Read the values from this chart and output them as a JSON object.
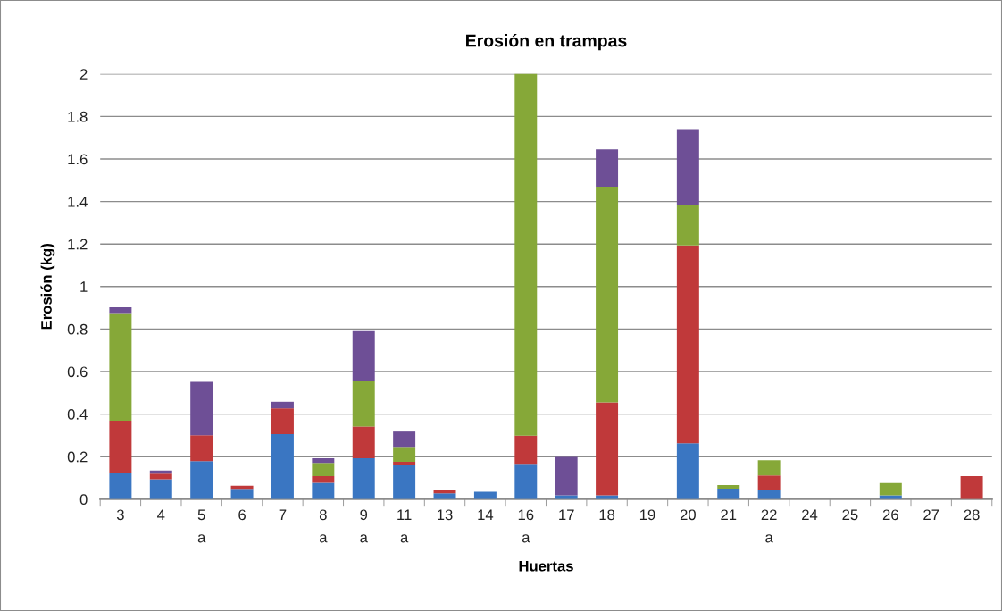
{
  "chart_data": {
    "type": "bar",
    "title": "Erosión en trampas",
    "xlabel": "Huertas",
    "ylabel": "Erosión (kg)",
    "stacked": true,
    "categories": [
      "3",
      "4",
      "5\na",
      "6",
      "7",
      "8\na",
      "9\na",
      "11\na",
      "13",
      "14",
      "16\na",
      "17",
      "18",
      "19",
      "20",
      "21",
      "22\na",
      "24",
      "25",
      "26",
      "27",
      "28"
    ],
    "series": [
      {
        "color": "#3a76c2",
        "values": [
          0.125,
          0.094,
          0.179,
          0.049,
          0.306,
          0.077,
          0.193,
          0.162,
          0.028,
          0.035,
          0.166,
          0.018,
          0.018,
          0,
          0.263,
          0.05,
          0.041,
          0,
          0,
          0.018,
          0,
          0
        ]
      },
      {
        "color": "#c0393a",
        "values": [
          0.244,
          0.026,
          0.122,
          0.014,
          0.121,
          0.031,
          0.149,
          0.014,
          0.013,
          0,
          0.133,
          0,
          0.437,
          0,
          0.93,
          0,
          0.071,
          0,
          0,
          0,
          0,
          0.109
        ]
      },
      {
        "color": "#86a838",
        "values": [
          0.506,
          0,
          0,
          0,
          0,
          0.062,
          0.214,
          0.07,
          0,
          0,
          1.705,
          0,
          1.015,
          0,
          0.19,
          0.017,
          0.071,
          0,
          0,
          0.058,
          0,
          0
        ]
      },
      {
        "color": "#6e4f96",
        "values": [
          0.028,
          0.015,
          0.251,
          0,
          0.031,
          0.023,
          0.238,
          0.072,
          0,
          0,
          0,
          0.181,
          0.175,
          0,
          0.358,
          0,
          0,
          0,
          0,
          0,
          0,
          0
        ]
      }
    ],
    "ylim": [
      0,
      2
    ],
    "yticks": [
      0,
      0.2,
      0.4,
      0.6,
      0.8,
      1,
      1.2,
      1.4,
      1.6,
      1.8,
      2
    ],
    "grid": "y",
    "legend": false
  }
}
